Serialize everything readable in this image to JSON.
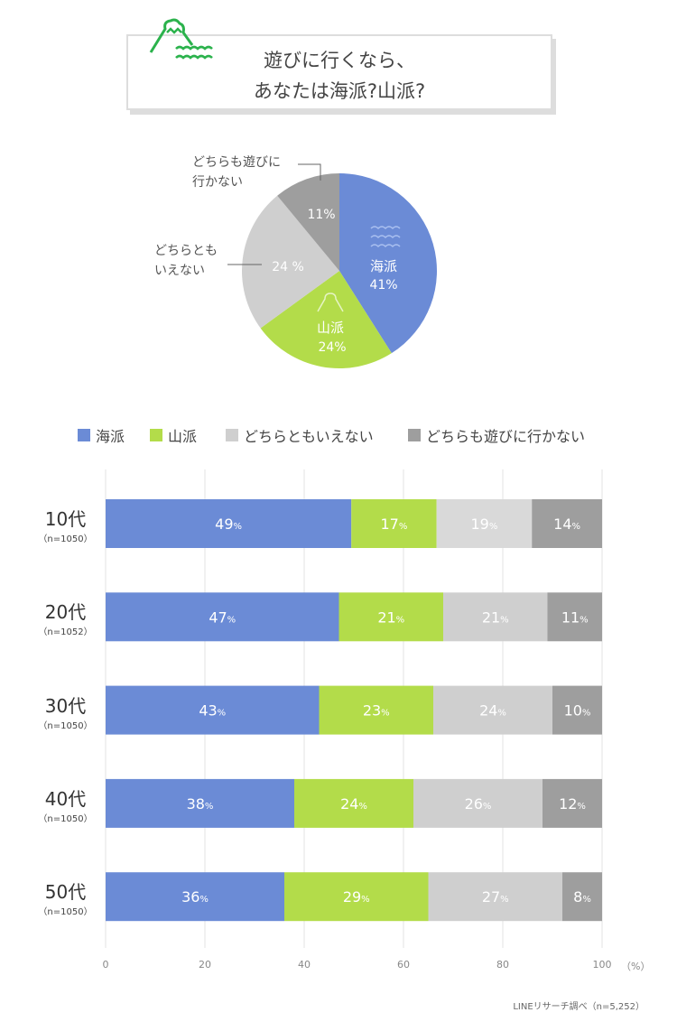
{
  "title": {
    "line1": "遊びに行くなら、",
    "line2": "あなたは海派?山派?"
  },
  "colors": {
    "sea": "#6b8bd6",
    "mountain": "#b3dc4a",
    "neither": "#cfcfcf",
    "neither_row1": "#d9d9d9",
    "none": "#9e9e9e",
    "icon": "#2bb24c"
  },
  "chart_data": [
    {
      "type": "pie",
      "slices": [
        {
          "label": "海派",
          "value": 41,
          "display": "41%"
        },
        {
          "label": "山派",
          "value": 24,
          "display": "24%"
        },
        {
          "label": "どちらともいえない",
          "value": 24,
          "display": "24 %",
          "callout": [
            "どちらとも",
            "いえない"
          ]
        },
        {
          "label": "どちらも遊びに行かない",
          "value": 11,
          "display": "11%",
          "callout": [
            "どちらも遊びに",
            "行かない"
          ]
        }
      ]
    },
    {
      "type": "bar",
      "orientation": "horizontal",
      "stacked": true,
      "legend": [
        "海派",
        "山派",
        "どちらともいえない",
        "どちらも遊びに行かない"
      ],
      "legend_placement": "top",
      "categories": [
        {
          "age": "10代",
          "n": "（n=1050）"
        },
        {
          "age": "20代",
          "n": "（n=1052）"
        },
        {
          "age": "30代",
          "n": "（n=1050）"
        },
        {
          "age": "40代",
          "n": "（n=1050）"
        },
        {
          "age": "50代",
          "n": "（n=1050）"
        }
      ],
      "series": [
        {
          "name": "海派",
          "values": [
            49,
            47,
            43,
            38,
            36
          ]
        },
        {
          "name": "山派",
          "values": [
            17,
            21,
            23,
            24,
            29
          ]
        },
        {
          "name": "どちらともいえない",
          "values": [
            19,
            21,
            24,
            26,
            27
          ]
        },
        {
          "name": "どちらも遊びに行かない",
          "values": [
            14,
            11,
            10,
            12,
            8
          ]
        }
      ],
      "xlim": [
        0,
        100
      ],
      "xticks": [
        "0",
        "20",
        "40",
        "60",
        "80",
        "100"
      ],
      "xunit": "（%）",
      "grid": true
    }
  ],
  "credit": "LINEリサーチ調べ（n=5,252）"
}
